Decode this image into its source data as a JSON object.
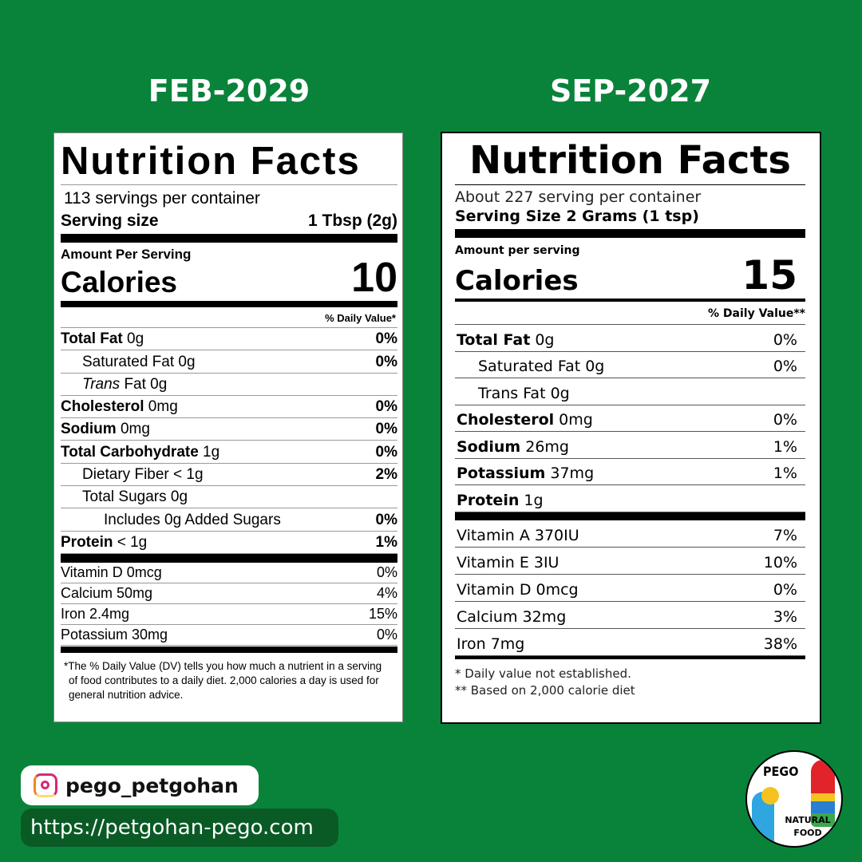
{
  "left": {
    "date": "FEB-2029",
    "title": "Nutrition Facts",
    "servings": "113 servings per container",
    "serving_size_label": "Serving size",
    "serving_size_value": "1 Tbsp (2g)",
    "amount_per_serving": "Amount Per Serving",
    "calories_label": "Calories",
    "calories_value": "10",
    "dv_header": "% Daily Value*",
    "rows": [
      {
        "bold": "Total Fat",
        "text": " 0g",
        "dv": "0%",
        "indent": 0
      },
      {
        "bold": "",
        "text": "Saturated Fat 0g",
        "dv": "0%",
        "indent": 1
      },
      {
        "bold": "",
        "italic": "Trans",
        "text": " Fat 0g",
        "dv": "",
        "indent": 1
      },
      {
        "bold": "Cholesterol",
        "text": " 0mg",
        "dv": "0%",
        "indent": 0
      },
      {
        "bold": "Sodium",
        "text": " 0mg",
        "dv": "0%",
        "indent": 0
      },
      {
        "bold": "Total Carbohydrate",
        "text": " 1g",
        "dv": "0%",
        "indent": 0
      },
      {
        "bold": "",
        "text": "Dietary Fiber < 1g",
        "dv": "2%",
        "indent": 1
      },
      {
        "bold": "",
        "text": "Total Sugars 0g",
        "dv": "",
        "indent": 1
      },
      {
        "bold": "",
        "text": "Includes 0g Added Sugars",
        "dv": "0%",
        "indent": 2
      },
      {
        "bold": "Protein",
        "text": " < 1g",
        "dv": "1%",
        "indent": 0
      }
    ],
    "vitamins": [
      {
        "text": "Vitamin D 0mcg",
        "dv": "0%"
      },
      {
        "text": "Calcium 50mg",
        "dv": "4%"
      },
      {
        "text": "Iron 2.4mg",
        "dv": "15%"
      },
      {
        "text": "Potassium 30mg",
        "dv": "0%"
      }
    ],
    "footnote": "The % Daily Value (DV) tells you how much a nutrient in a serving of food contributes to a daily diet. 2,000 calories a day is used for general nutrition advice."
  },
  "right": {
    "date": "SEP-2027",
    "title": "Nutrition Facts",
    "servings": "About 227 serving per container",
    "serving_size": "Serving Size 2 Grams (1 tsp)",
    "amount_per_serving": "Amount per serving",
    "calories_label": "Calories",
    "calories_value": "15",
    "dv_header": "% Daily Value**",
    "rows": [
      {
        "bold": "Total Fat",
        "text": " 0g",
        "dv": "0%",
        "indent": 0
      },
      {
        "bold": "",
        "text": "Saturated Fat 0g",
        "dv": "0%",
        "indent": 1
      },
      {
        "bold": "",
        "text": "Trans Fat 0g",
        "dv": "",
        "indent": 1
      },
      {
        "bold": "Cholesterol",
        "text": " 0mg",
        "dv": "0%",
        "indent": 0
      },
      {
        "bold": "Sodium",
        "text": " 26mg",
        "dv": "1%",
        "indent": 0
      },
      {
        "bold": "Potassium",
        "text": " 37mg",
        "dv": "1%",
        "indent": 0
      },
      {
        "bold": "Protein",
        "text": " 1g",
        "dv": "",
        "indent": 0
      }
    ],
    "vitamins": [
      {
        "text": "Vitamin A 370IU",
        "dv": "7%"
      },
      {
        "text": "Vitamin E 3IU",
        "dv": "10%"
      },
      {
        "text": "Vitamin D 0mcg",
        "dv": "0%"
      },
      {
        "text": "Calcium 32mg",
        "dv": "3%"
      },
      {
        "text": "Iron 7mg",
        "dv": "38%"
      }
    ],
    "footnote1": "* Daily value not established.",
    "footnote2": "** Based on 2,000 calorie diet"
  },
  "footer": {
    "instagram": "pego_petgohan",
    "instagram_icon": "instagram-icon",
    "url": "https://petgohan-pego.com",
    "logo_top": "PEGO",
    "logo_bottom": "NATURAL FOOD"
  },
  "colors": {
    "background": "#0a833a",
    "url_pill": "#0a5a25"
  }
}
